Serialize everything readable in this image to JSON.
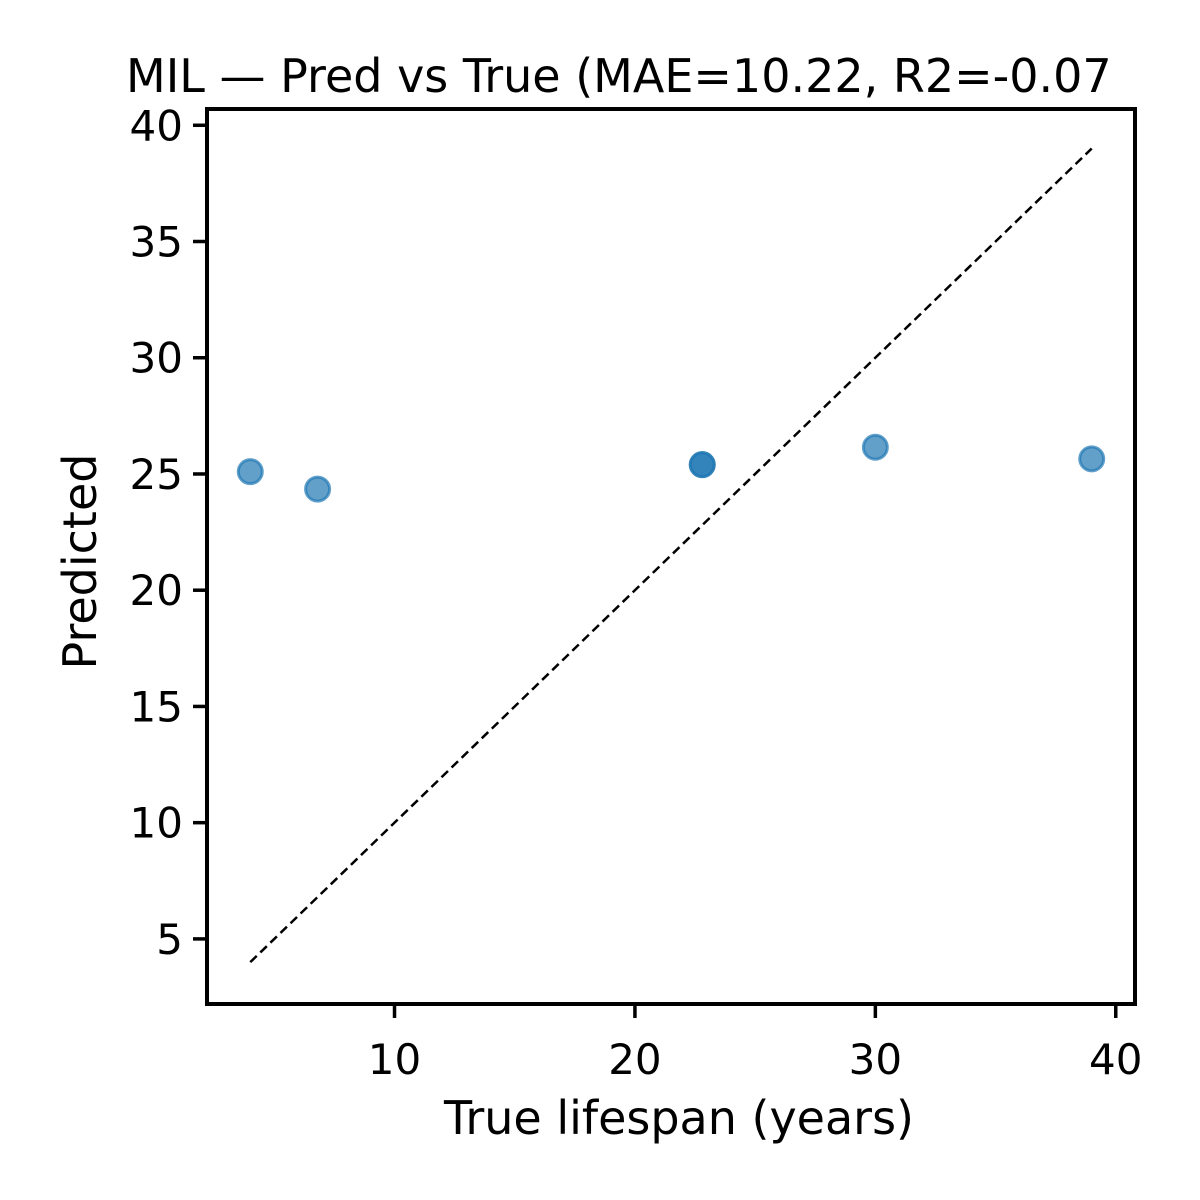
{
  "chart_data": {
    "type": "scatter",
    "title": "MIL — Pred vs True (MAE=10.22, R2=-0.07",
    "xlabel": "True lifespan (years)",
    "ylabel": "Predicted",
    "xlim": [
      2.2,
      40.8
    ],
    "ylim": [
      2.2,
      40.7
    ],
    "xticks": [
      10,
      20,
      30,
      40
    ],
    "yticks": [
      5,
      10,
      15,
      20,
      25,
      30,
      35,
      40
    ],
    "grid": false,
    "reference_line": {
      "style": "dashed",
      "color": "#000000",
      "x": [
        4,
        39
      ],
      "y": [
        4,
        39
      ]
    },
    "series": [
      {
        "color": "#1f77b4",
        "points": [
          {
            "x": 4.0,
            "y": 25.1
          },
          {
            "x": 6.8,
            "y": 24.35
          },
          {
            "x": 22.8,
            "y": 25.4
          },
          {
            "x": 22.8,
            "y": 25.4
          },
          {
            "x": 30.0,
            "y": 26.15
          },
          {
            "x": 39.0,
            "y": 25.65
          }
        ]
      }
    ]
  }
}
